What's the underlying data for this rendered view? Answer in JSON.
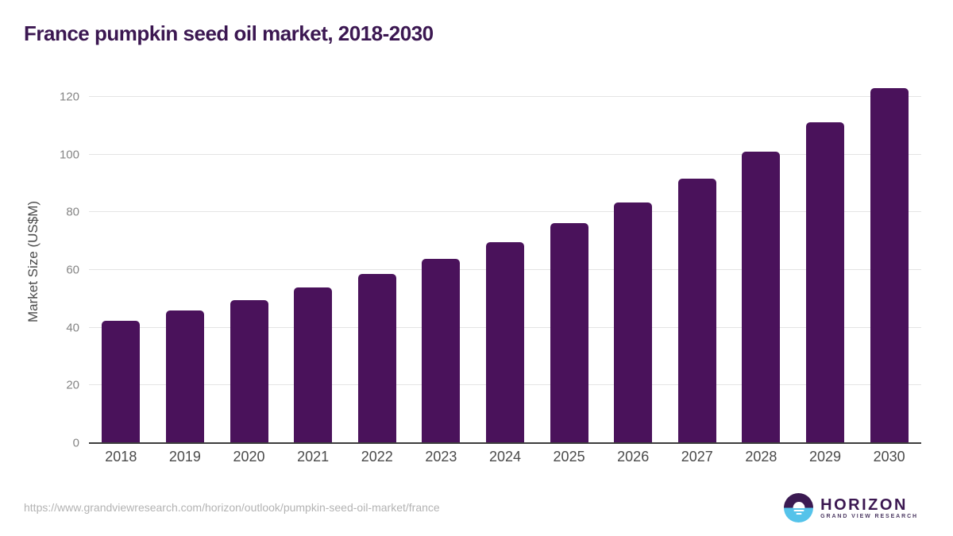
{
  "title": "France pumpkin seed oil market, 2018-2030",
  "source_url": "https://www.grandviewresearch.com/horizon/outlook/pumpkin-seed-oil-market/france",
  "logo": {
    "icon": "horizon-sunrise-icon",
    "brand": "HORIZON",
    "sub": "GRAND VIEW RESEARCH"
  },
  "colors": {
    "bar": "#4a125b",
    "title_text": "#3b1751",
    "axis_text": "#4a4a4a",
    "tick_text": "#858585",
    "gridline": "#e4e4e4",
    "axis_line": "#3d3d3d",
    "url_text": "#b3b3b3",
    "logo_top": "#3b1a52",
    "logo_bottom": "#55c3ea"
  },
  "chart_data": {
    "type": "bar",
    "title": "France pumpkin seed oil market, 2018-2030",
    "xlabel": "",
    "ylabel": "Market Size (US$M)",
    "categories": [
      "2018",
      "2019",
      "2020",
      "2021",
      "2022",
      "2023",
      "2024",
      "2025",
      "2026",
      "2027",
      "2028",
      "2029",
      "2030"
    ],
    "values": [
      42.3,
      46.0,
      49.6,
      54.0,
      58.6,
      63.9,
      69.6,
      76.2,
      83.4,
      91.5,
      101.1,
      111.1,
      123.0
    ],
    "ylim": [
      0,
      126
    ],
    "yticks": [
      0,
      20,
      40,
      60,
      80,
      100,
      120
    ],
    "grid": true,
    "legend": "none"
  }
}
